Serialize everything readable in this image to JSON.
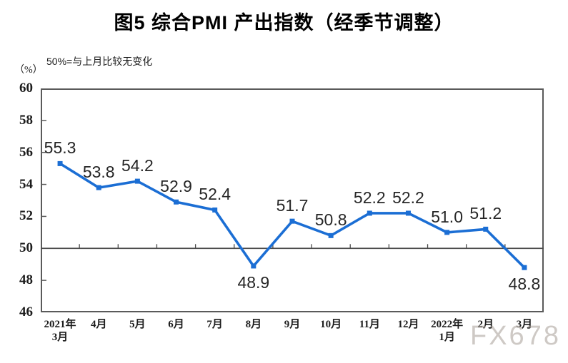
{
  "chart_data": {
    "type": "line",
    "title": "图5 综合PMI 产出指数（经季节调整）",
    "subtitle": "50%=与上月比较无变化",
    "unit_label": "（%）",
    "ylim": [
      46,
      60
    ],
    "yticks": [
      60,
      58,
      56,
      54,
      52,
      50,
      48,
      46
    ],
    "reference_line": 50,
    "grid": false,
    "legend_position": "none",
    "categories": [
      "2021年\n3月",
      "4月",
      "5月",
      "6月",
      "7月",
      "8月",
      "9月",
      "10月",
      "11月",
      "12月",
      "2022年\n1月",
      "2月",
      "3月"
    ],
    "series": [
      {
        "name": "综合PMI产出指数",
        "values": [
          55.3,
          53.8,
          54.2,
          52.9,
          52.4,
          48.9,
          51.7,
          50.8,
          52.2,
          52.2,
          51.0,
          51.2,
          48.8
        ]
      }
    ],
    "data_labels": [
      "55.3",
      "53.8",
      "54.2",
      "52.9",
      "52.4",
      "48.9",
      "51.7",
      "50.8",
      "52.2",
      "52.2",
      "51.0",
      "51.2",
      "48.8"
    ],
    "label_positions": [
      "above",
      "above",
      "above",
      "above",
      "above",
      "below",
      "above",
      "above",
      "above",
      "above",
      "above",
      "above",
      "below"
    ],
    "colors": {
      "series": "#1b6ed4",
      "axis": "#5a5a5a",
      "reference_line": "#4a4a4a",
      "text": "#1c1c1c"
    }
  },
  "watermark": {
    "text": "FX678"
  }
}
